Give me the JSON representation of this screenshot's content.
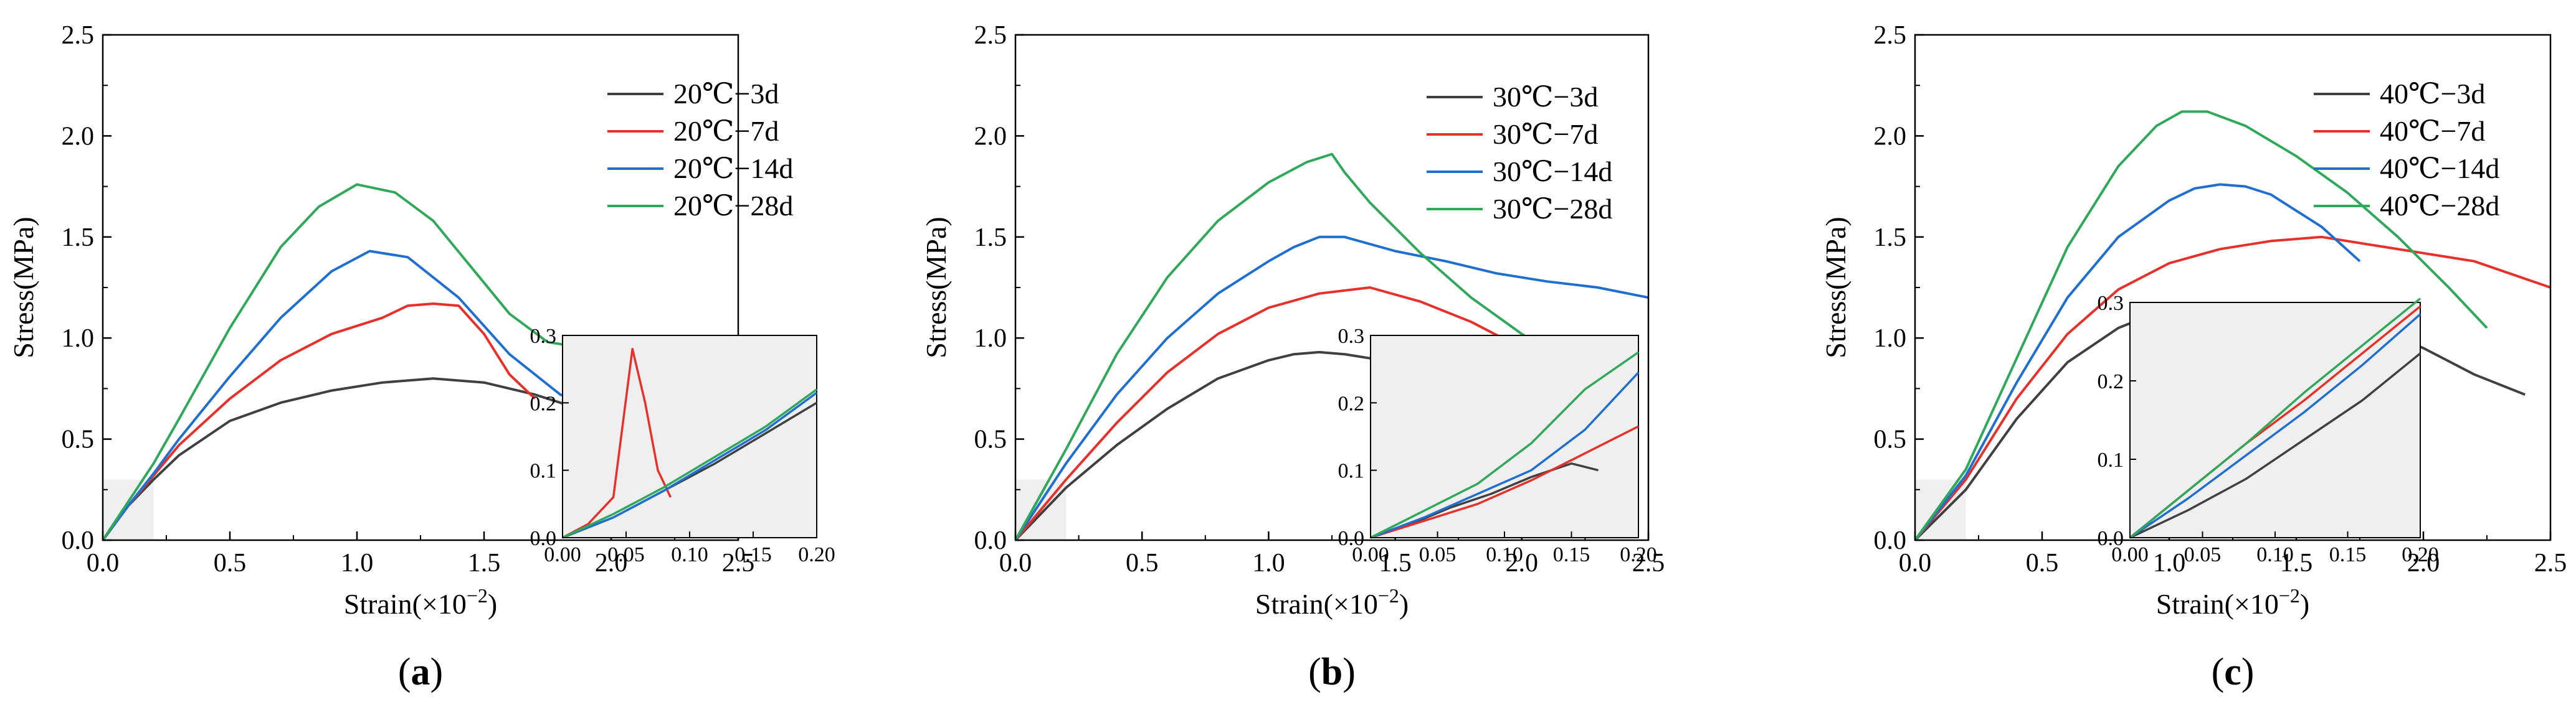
{
  "colors": {
    "3d": "#404040",
    "7d": "#e8302a",
    "14d": "#1f6fd1",
    "28d": "#2fa85a",
    "inset_bg": "#efefef",
    "axis": "#000000"
  },
  "chart_data": [
    {
      "type": "line",
      "panel_label": "a",
      "xlabel": "Strain(×10",
      "xlabel_exp": "−2",
      "xlabel_close": ")",
      "ylabel": "Stress(MPa)",
      "xlim": [
        0,
        2.5
      ],
      "ylim": [
        0,
        2.5
      ],
      "x_ticks": [
        "0.0",
        "0.5",
        "1.0",
        "1.5",
        "2.0",
        "2.5"
      ],
      "y_ticks": [
        "0.0",
        "0.5",
        "1.0",
        "1.5",
        "2.0",
        "2.5"
      ],
      "inset": {
        "xlim": [
          0,
          0.2
        ],
        "ylim": [
          0,
          0.3
        ],
        "x_ticks": [
          "0.00",
          "0.05",
          "0.10",
          "0.15",
          "0.20"
        ],
        "y_ticks": [
          "0.0",
          "0.1",
          "0.2",
          "0.3"
        ]
      },
      "series": [
        {
          "name": "20℃−3d",
          "key": "3d",
          "x": [
            0,
            0.1,
            0.2,
            0.3,
            0.5,
            0.7,
            0.9,
            1.1,
            1.3,
            1.5,
            1.7,
            1.9,
            2.1,
            2.2
          ],
          "y": [
            0,
            0.17,
            0.3,
            0.42,
            0.59,
            0.68,
            0.74,
            0.78,
            0.8,
            0.78,
            0.72,
            0.64,
            0.53,
            0.46
          ],
          "inset": {
            "x": [
              0,
              0.04,
              0.08,
              0.12,
              0.16,
              0.2
            ],
            "y": [
              0,
              0.03,
              0.07,
              0.11,
              0.155,
              0.2
            ]
          }
        },
        {
          "name": "20℃−7d",
          "key": "7d",
          "x": [
            0,
            0.1,
            0.2,
            0.3,
            0.5,
            0.7,
            0.9,
            1.1,
            1.2,
            1.3,
            1.4,
            1.5,
            1.6,
            1.7
          ],
          "y": [
            0,
            0.17,
            0.32,
            0.47,
            0.7,
            0.89,
            1.02,
            1.1,
            1.16,
            1.17,
            1.16,
            1.02,
            0.82,
            0.7
          ],
          "inset": {
            "x": [
              0,
              0.02,
              0.04,
              0.055,
              0.065,
              0.075,
              0.085
            ],
            "y": [
              0,
              0.02,
              0.06,
              0.28,
              0.2,
              0.1,
              0.06
            ]
          }
        },
        {
          "name": "20℃−14d",
          "key": "14d",
          "x": [
            0,
            0.1,
            0.2,
            0.3,
            0.5,
            0.7,
            0.9,
            1.05,
            1.2,
            1.4,
            1.6,
            1.8,
            2.0,
            2.2,
            2.4
          ],
          "y": [
            0,
            0.17,
            0.33,
            0.5,
            0.81,
            1.1,
            1.33,
            1.43,
            1.4,
            1.2,
            0.92,
            0.72,
            0.64,
            0.6,
            0.58
          ],
          "inset": {
            "x": [
              0,
              0.04,
              0.08,
              0.12,
              0.16,
              0.2
            ],
            "y": [
              0,
              0.03,
              0.07,
              0.115,
              0.16,
              0.215
            ]
          }
        },
        {
          "name": "20℃−28d",
          "key": "28d",
          "x": [
            0,
            0.1,
            0.2,
            0.3,
            0.5,
            0.7,
            0.85,
            1.0,
            1.15,
            1.3,
            1.45,
            1.6,
            1.75,
            1.9,
            1.97
          ],
          "y": [
            0,
            0.19,
            0.38,
            0.6,
            1.05,
            1.45,
            1.65,
            1.76,
            1.72,
            1.58,
            1.35,
            1.12,
            0.98,
            0.95,
            1.0
          ],
          "inset": {
            "x": [
              0,
              0.04,
              0.08,
              0.12,
              0.16,
              0.2
            ],
            "y": [
              0,
              0.035,
              0.075,
              0.12,
              0.165,
              0.22
            ]
          }
        }
      ]
    },
    {
      "type": "line",
      "panel_label": "b",
      "xlabel": "Strain(×10",
      "xlabel_exp": "−2",
      "xlabel_close": ")",
      "ylabel": "Stress(MPa)",
      "xlim": [
        0,
        2.5
      ],
      "ylim": [
        0,
        2.5
      ],
      "x_ticks": [
        "0.0",
        "0.5",
        "1.0",
        "1.5",
        "2.0",
        "2.5"
      ],
      "y_ticks": [
        "0.0",
        "0.5",
        "1.0",
        "1.5",
        "2.0",
        "2.5"
      ],
      "inset": {
        "xlim": [
          0,
          0.2
        ],
        "ylim": [
          0,
          0.3
        ],
        "x_ticks": [
          "0.00",
          "0.05",
          "0.10",
          "0.15",
          "0.20"
        ],
        "y_ticks": [
          "0.0",
          "0.1",
          "0.2",
          "0.3"
        ]
      },
      "series": [
        {
          "name": "30℃−3d",
          "key": "3d",
          "x": [
            0,
            0.2,
            0.4,
            0.6,
            0.8,
            1.0,
            1.1,
            1.2,
            1.3,
            1.4,
            1.5,
            1.6,
            1.7
          ],
          "y": [
            0,
            0.26,
            0.47,
            0.65,
            0.8,
            0.89,
            0.92,
            0.93,
            0.92,
            0.9,
            0.85,
            0.8,
            0.68
          ],
          "inset": {
            "x": [
              0,
              0.03,
              0.06,
              0.09,
              0.12,
              0.15,
              0.17
            ],
            "y": [
              0,
              0.02,
              0.045,
              0.065,
              0.09,
              0.11,
              0.1
            ]
          }
        },
        {
          "name": "30℃−7d",
          "key": "7d",
          "x": [
            0,
            0.2,
            0.4,
            0.6,
            0.8,
            1.0,
            1.2,
            1.4,
            1.6,
            1.8,
            2.0,
            2.2,
            2.4
          ],
          "y": [
            0,
            0.3,
            0.58,
            0.83,
            1.02,
            1.15,
            1.22,
            1.25,
            1.18,
            1.08,
            0.95,
            0.72,
            0.58
          ],
          "inset": {
            "x": [
              0,
              0.04,
              0.08,
              0.12,
              0.16,
              0.2
            ],
            "y": [
              0,
              0.025,
              0.05,
              0.085,
              0.125,
              0.165
            ]
          }
        },
        {
          "name": "30℃−14d",
          "key": "14d",
          "x": [
            0,
            0.2,
            0.4,
            0.6,
            0.8,
            1.0,
            1.1,
            1.2,
            1.3,
            1.5,
            1.7,
            1.9,
            2.1,
            2.3,
            2.5
          ],
          "y": [
            0,
            0.38,
            0.72,
            1.0,
            1.22,
            1.38,
            1.45,
            1.5,
            1.5,
            1.43,
            1.38,
            1.32,
            1.28,
            1.25,
            1.2
          ],
          "inset": {
            "x": [
              0,
              0.04,
              0.08,
              0.12,
              0.16,
              0.2
            ],
            "y": [
              0,
              0.03,
              0.065,
              0.1,
              0.16,
              0.245
            ]
          }
        },
        {
          "name": "30℃−28d",
          "key": "28d",
          "x": [
            0,
            0.2,
            0.4,
            0.6,
            0.8,
            1.0,
            1.15,
            1.25,
            1.3,
            1.4,
            1.6,
            1.8,
            2.0,
            2.2,
            2.4
          ],
          "y": [
            0,
            0.45,
            0.92,
            1.3,
            1.58,
            1.77,
            1.87,
            1.91,
            1.82,
            1.67,
            1.42,
            1.2,
            1.02,
            0.85,
            0.75
          ],
          "inset": {
            "x": [
              0,
              0.04,
              0.08,
              0.12,
              0.16,
              0.2
            ],
            "y": [
              0,
              0.04,
              0.08,
              0.14,
              0.22,
              0.275
            ]
          }
        }
      ]
    },
    {
      "type": "line",
      "panel_label": "c",
      "xlabel": "Strain(×10",
      "xlabel_exp": "−2",
      "xlabel_close": ")",
      "ylabel": "Stress(MPa)",
      "xlim": [
        0,
        2.5
      ],
      "ylim": [
        0,
        2.5
      ],
      "x_ticks": [
        "0.0",
        "0.5",
        "1.0",
        "1.5",
        "2.0",
        "2.5"
      ],
      "y_ticks": [
        "0.0",
        "0.5",
        "1.0",
        "1.5",
        "2.0",
        "2.5"
      ],
      "inset": {
        "xlim": [
          0,
          0.2
        ],
        "ylim": [
          0,
          0.3
        ],
        "x_ticks": [
          "0.00",
          "0.05",
          "0.10",
          "0.15",
          "0.20"
        ],
        "y_ticks": [
          "0.0",
          "0.1",
          "0.2",
          "0.3"
        ]
      },
      "series": [
        {
          "name": "40℃−3d",
          "key": "3d",
          "x": [
            0,
            0.2,
            0.4,
            0.6,
            0.8,
            1.0,
            1.2,
            1.4,
            1.6,
            1.8,
            2.0,
            2.2,
            2.4
          ],
          "y": [
            0,
            0.25,
            0.6,
            0.88,
            1.05,
            1.15,
            1.17,
            1.16,
            1.12,
            1.06,
            0.95,
            0.82,
            0.72
          ],
          "inset": {
            "x": [
              0,
              0.04,
              0.08,
              0.12,
              0.16,
              0.2
            ],
            "y": [
              0,
              0.035,
              0.075,
              0.125,
              0.175,
              0.235
            ]
          }
        },
        {
          "name": "40℃−7d",
          "key": "7d",
          "x": [
            0,
            0.2,
            0.4,
            0.6,
            0.8,
            1.0,
            1.2,
            1.4,
            1.6,
            1.8,
            2.0,
            2.2,
            2.5
          ],
          "y": [
            0,
            0.3,
            0.7,
            1.02,
            1.24,
            1.37,
            1.44,
            1.48,
            1.5,
            1.46,
            1.42,
            1.38,
            1.25
          ],
          "inset": {
            "x": [
              0,
              0.04,
              0.08,
              0.12,
              0.16,
              0.2
            ],
            "y": [
              0,
              0.06,
              0.12,
              0.175,
              0.235,
              0.295
            ]
          }
        },
        {
          "name": "40℃−14d",
          "key": "14d",
          "x": [
            0,
            0.2,
            0.4,
            0.6,
            0.8,
            1.0,
            1.1,
            1.2,
            1.3,
            1.4,
            1.5,
            1.6,
            1.75
          ],
          "y": [
            0,
            0.32,
            0.78,
            1.2,
            1.5,
            1.68,
            1.74,
            1.76,
            1.75,
            1.71,
            1.63,
            1.55,
            1.38
          ],
          "inset": {
            "x": [
              0,
              0.04,
              0.08,
              0.12,
              0.16,
              0.2
            ],
            "y": [
              0,
              0.05,
              0.105,
              0.16,
              0.22,
              0.285
            ]
          }
        },
        {
          "name": "40℃−28d",
          "key": "28d",
          "x": [
            0,
            0.2,
            0.4,
            0.6,
            0.8,
            0.95,
            1.05,
            1.15,
            1.3,
            1.5,
            1.7,
            1.9,
            2.1,
            2.25
          ],
          "y": [
            0,
            0.35,
            0.9,
            1.45,
            1.85,
            2.05,
            2.12,
            2.12,
            2.05,
            1.9,
            1.72,
            1.5,
            1.25,
            1.05
          ],
          "inset": {
            "x": [
              0,
              0.04,
              0.08,
              0.12,
              0.16,
              0.2
            ],
            "y": [
              0,
              0.06,
              0.12,
              0.185,
              0.245,
              0.305
            ]
          }
        }
      ]
    }
  ]
}
